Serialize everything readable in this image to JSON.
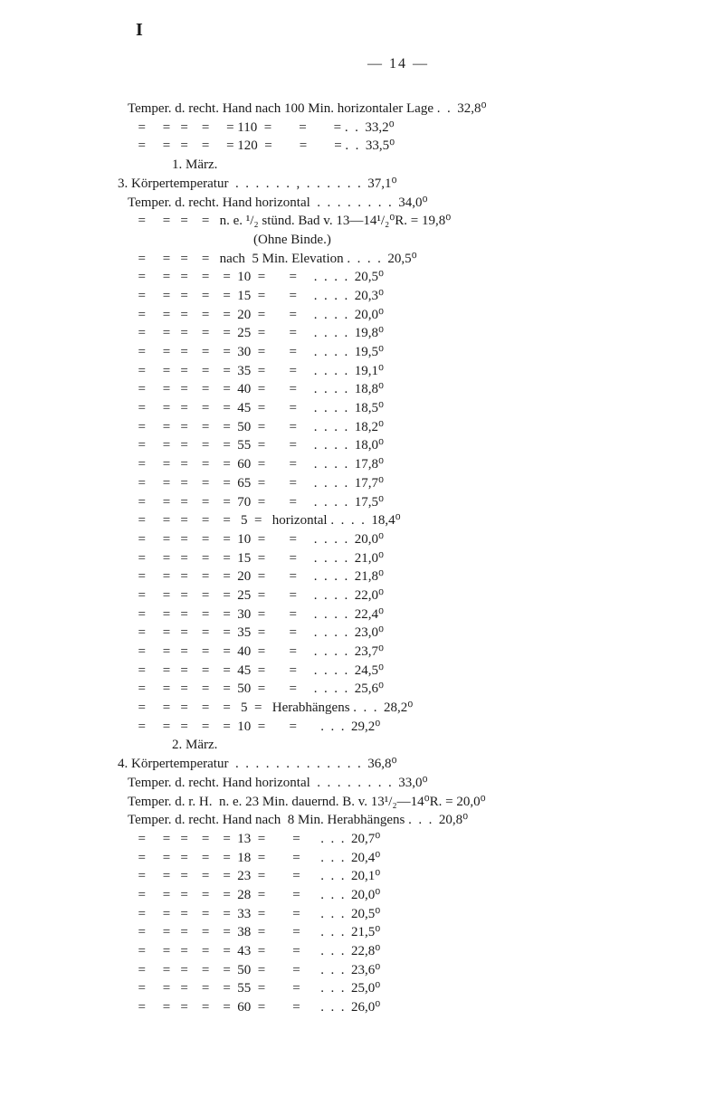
{
  "marker": "I",
  "page_number": "—  14  —",
  "lines": [
    "   Temper. d. recht. Hand nach 100 Min. horizontaler Lage .  .  32,8⁰",
    "      =     =   =    =     = 110  =        =        = .  .  33,2⁰",
    "      =     =   =    =     = 120  =        =        = .  .  33,5⁰",
    "                1. März.",
    "3. Körpertemperatur  .  .  .  .  .  .  ,  .  .  .  .  .  .  37,1⁰",
    "   Temper. d. recht. Hand horizontal  .  .  .  .  .  .  .  .  34,0⁰",
    "      =     =   =    =   n. e. ¹/₂ stünd. Bad v. 13—14¹/₂⁰R. = 19,8⁰",
    "                                        (Ohne Binde.)",
    "      =     =   =    =   nach  5 Min. Elevation .  .  .  .  20,5⁰",
    "      =     =   =    =    =  10  =       =     .  .  .  .  20,5⁰",
    "      =     =   =    =    =  15  =       =     .  .  .  .  20,3⁰",
    "      =     =   =    =    =  20  =       =     .  .  .  .  20,0⁰",
    "      =     =   =    =    =  25  =       =     .  .  .  .  19,8⁰",
    "      =     =   =    =    =  30  =       =     .  .  .  .  19,5⁰",
    "      =     =   =    =    =  35  =       =     .  .  .  .  19,1⁰",
    "      =     =   =    =    =  40  =       =     .  .  .  .  18,8⁰",
    "      =     =   =    =    =  45  =       =     .  .  .  .  18,5⁰",
    "      =     =   =    =    =  50  =       =     .  .  .  .  18,2⁰",
    "      =     =   =    =    =  55  =       =     .  .  .  .  18,0⁰",
    "      =     =   =    =    =  60  =       =     .  .  .  .  17,8⁰",
    "      =     =   =    =    =  65  =       =     .  .  .  .  17,7⁰",
    "      =     =   =    =    =  70  =       =     .  .  .  .  17,5⁰",
    "      =     =   =    =    =   5  =   horizontal .  .  .  .  18,4⁰",
    "      =     =   =    =    =  10  =       =     .  .  .  .  20,0⁰",
    "      =     =   =    =    =  15  =       =     .  .  .  .  21,0⁰",
    "      =     =   =    =    =  20  =       =     .  .  .  .  21,8⁰",
    "      =     =   =    =    =  25  =       =     .  .  .  .  22,0⁰",
    "      =     =   =    =    =  30  =       =     .  .  .  .  22,4⁰",
    "      =     =   =    =    =  35  =       =     .  .  .  .  23,0⁰",
    "      =     =   =    =    =  40  =       =     .  .  .  .  23,7⁰",
    "      =     =   =    =    =  45  =       =     .  .  .  .  24,5⁰",
    "      =     =   =    =    =  50  =       =     .  .  .  .  25,6⁰",
    "      =     =   =    =    =   5  =   Herabhängens .  .  .  28,2⁰",
    "      =     =   =    =    =  10  =       =       .  .  .  29,2⁰",
    "                2. März.",
    "4. Körpertemperatur  .  .  .  .  .  .  .  .  .  .  .  .  .  36,8⁰",
    "   Temper. d. recht. Hand horizontal  .  .  .  .  .  .  .  .  33,0⁰",
    "   Temper. d. r. H.  n. e. 23 Min. dauernd. B. v. 13¹/₂—14⁰R. = 20,0⁰",
    "   Temper. d. recht. Hand nach  8 Min. Herabhängens .  .  .  20,8⁰",
    "      =     =   =    =    =  13  =        =      .  .  .  20,7⁰",
    "      =     =   =    =    =  18  =        =      .  .  .  20,4⁰",
    "      =     =   =    =    =  23  =        =      .  .  .  20,1⁰",
    "      =     =   =    =    =  28  =        =      .  .  .  20,0⁰",
    "      =     =   =    =    =  33  =        =      .  .  .  20,5⁰",
    "      =     =   =    =    =  38  =        =      .  .  .  21,5⁰",
    "      =     =   =    =    =  43  =        =      .  .  .  22,8⁰",
    "      =     =   =    =    =  50  =        =      .  .  .  23,6⁰",
    "      =     =   =    =    =  55  =        =      .  .  .  25,0⁰",
    "      =     =   =    =    =  60  =        =      .  .  .  26,0⁰"
  ]
}
